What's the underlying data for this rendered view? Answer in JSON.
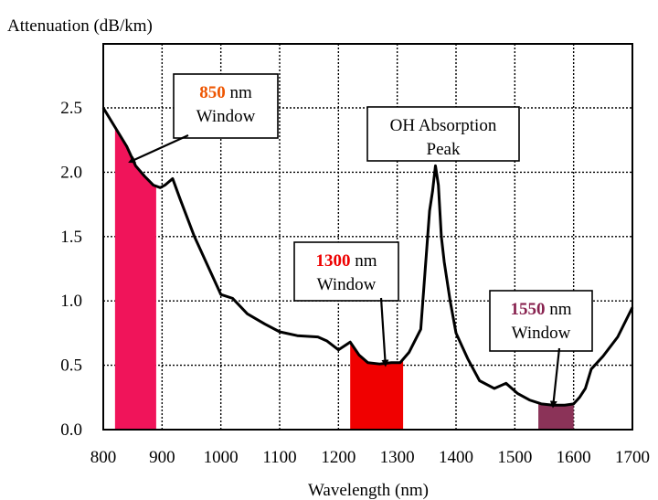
{
  "chart_data": {
    "type": "line",
    "ylabel": "Attenuation (dB/km)",
    "xlabel": "Wavelength (nm)",
    "xlim": [
      800,
      1700
    ],
    "ylim": [
      0,
      2.5
    ],
    "xticks": [
      800,
      900,
      1000,
      1100,
      1200,
      1300,
      1400,
      1500,
      1600,
      1700
    ],
    "yticks": [
      0.0,
      0.5,
      1.0,
      1.5,
      2.0,
      2.5
    ],
    "ytick_labels": [
      "0.0",
      "0.5",
      "1.0",
      "1.5",
      "2.0",
      "2.5"
    ],
    "grid": true,
    "series": [
      {
        "x": [
          800,
          820,
          840,
          855,
          870,
          885,
          897,
          905,
          918,
          930,
          955,
          980,
          1000,
          1020,
          1045,
          1075,
          1100,
          1130,
          1165,
          1180,
          1200,
          1220,
          1235,
          1250,
          1270,
          1290,
          1305,
          1320,
          1340,
          1355,
          1360,
          1365,
          1370,
          1375,
          1380,
          1390,
          1400,
          1420,
          1440,
          1465,
          1485,
          1505,
          1525,
          1545,
          1565,
          1585,
          1600,
          1610,
          1620,
          1630,
          1650,
          1675,
          1700
        ],
        "y": [
          2.5,
          2.35,
          2.2,
          2.05,
          1.97,
          1.9,
          1.88,
          1.9,
          1.95,
          1.8,
          1.5,
          1.25,
          1.05,
          1.02,
          0.9,
          0.82,
          0.76,
          0.73,
          0.72,
          0.69,
          0.62,
          0.68,
          0.58,
          0.52,
          0.51,
          0.52,
          0.52,
          0.6,
          0.78,
          1.7,
          1.85,
          2.05,
          1.9,
          1.5,
          1.3,
          1.0,
          0.75,
          0.55,
          0.38,
          0.32,
          0.36,
          0.28,
          0.23,
          0.2,
          0.19,
          0.19,
          0.2,
          0.25,
          0.32,
          0.47,
          0.57,
          0.72,
          0.95
        ],
        "color": "#000000"
      }
    ],
    "windows": [
      {
        "from": 820,
        "to": 890,
        "color": "#f0145a"
      },
      {
        "from": 1220,
        "to": 1310,
        "color": "#f00000"
      },
      {
        "from": 1540,
        "to": 1600,
        "color": "#8b3358"
      }
    ],
    "annotations": [
      {
        "num": "850",
        "num_color": "#ee5500",
        "line1_rest": " nm",
        "line2": "Window",
        "arrow_to": [
          845,
          2.08
        ]
      },
      {
        "num": "",
        "num_color": "#000000",
        "line1_rest": "OH Absorption",
        "line2": "Peak",
        "arrow_to": null
      },
      {
        "num": "1300",
        "num_color": "#ee0000",
        "line1_rest": " nm",
        "line2": "Window",
        "arrow_to": [
          1280,
          0.5
        ]
      },
      {
        "num": "1550",
        "num_color": "#88224f",
        "line1_rest": " nm",
        "line2": "Window",
        "arrow_to": [
          1565,
          0.18
        ]
      }
    ]
  }
}
